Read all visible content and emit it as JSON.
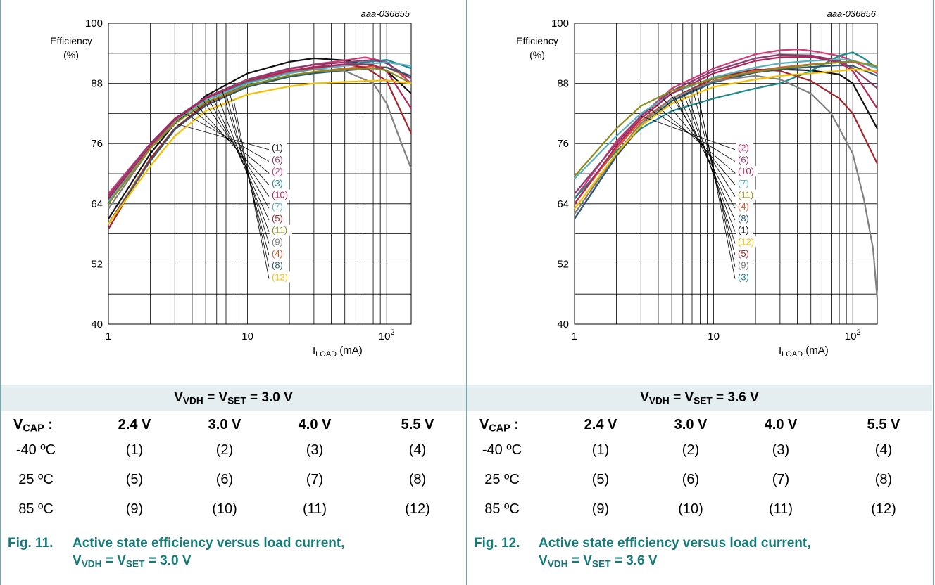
{
  "figures": [
    {
      "ref": "aaa-036855",
      "condition_label": "VVDH = VSET = 3.0 V",
      "condition_parts": {
        "v1": "V",
        "s1": "VDH",
        "mid": " = V",
        "s2": "SET",
        "val": " = 3.0 V"
      },
      "table": {
        "corner": "V",
        "corner_sub": "CAP",
        "corner_suffix": " :",
        "columns": [
          "2.4 V",
          "3.0 V",
          "4.0 V",
          "5.5 V"
        ],
        "rows": [
          {
            "temp": "-40 ºC",
            "cells": [
              "(1)",
              "(2)",
              "(3)",
              "(4)"
            ]
          },
          {
            "temp": "25 ºC",
            "cells": [
              "(5)",
              "(6)",
              "(7)",
              "(8)"
            ]
          },
          {
            "temp": "85 ºC",
            "cells": [
              "(9)",
              "(10)",
              "(11)",
              "(12)"
            ]
          }
        ]
      },
      "caption": {
        "fig": "Fig. 11.",
        "text": "Active state efficiency versus load current,",
        "line2_parts": {
          "v1": "V",
          "s1": "VDH",
          "mid": " = V",
          "s2": "SET",
          "val": " = 3.0 V"
        }
      }
    },
    {
      "ref": "aaa-036856",
      "condition_label": "VVDH = VSET = 3.6 V",
      "condition_parts": {
        "v1": "V",
        "s1": "VDH",
        "mid": " = V",
        "s2": "SET",
        "val": " = 3.6 V"
      },
      "table": {
        "corner": "V",
        "corner_sub": "CAP",
        "corner_suffix": " :",
        "columns": [
          "2.4 V",
          "3.0 V",
          "4.0 V",
          "5.5 V"
        ],
        "rows": [
          {
            "temp": "-40 ºC",
            "cells": [
              "(1)",
              "(2)",
              "(3)",
              "(4)"
            ]
          },
          {
            "temp": "25 ºC",
            "cells": [
              "(5)",
              "(6)",
              "(7)",
              "(8)"
            ]
          },
          {
            "temp": "85 ºC",
            "cells": [
              "(9)",
              "(10)",
              "(11)",
              "(12)"
            ]
          }
        ]
      },
      "caption": {
        "fig": "Fig. 12.",
        "text": "Active state efficiency versus load current,",
        "line2_parts": {
          "v1": "V",
          "s1": "VDH",
          "mid": " = V",
          "s2": "SET",
          "val": " = 3.6 V"
        }
      }
    }
  ],
  "chart_data": [
    {
      "type": "line",
      "ref": "aaa-036855",
      "ylabel": [
        "Efficiency",
        "(%)"
      ],
      "xlabel_main": "I",
      "xlabel_sub": "LOAD",
      "xlabel_unit": " (mA)",
      "x_scale": "log",
      "xlim": [
        1,
        150
      ],
      "ylim": [
        40,
        100
      ],
      "yticks": [
        "40",
        "52",
        "64",
        "76",
        "88",
        "100"
      ],
      "xticks": [
        {
          "v": 1,
          "t": "1"
        },
        {
          "v": 10,
          "t": "10"
        },
        {
          "v": 100,
          "t": "10",
          "sup": "2"
        }
      ],
      "legend_order": [
        "(1)",
        "(6)",
        "(2)",
        "(3)",
        "(10)",
        "(7)",
        "(5)",
        "(11)",
        "(9)",
        "(4)",
        "(8)",
        "(12)"
      ],
      "series": [
        {
          "name": "(1)",
          "color": "#111111",
          "x": [
            1,
            2,
            3,
            5,
            10,
            20,
            30,
            50,
            80,
            100,
            150
          ],
          "y": [
            61,
            74,
            80,
            85.5,
            90,
            92.3,
            93,
            92.6,
            91.5,
            90.5,
            86
          ]
        },
        {
          "name": "(2)",
          "color": "#d23a78",
          "x": [
            1,
            2,
            3,
            5,
            10,
            20,
            30,
            50,
            70,
            100,
            150
          ],
          "y": [
            66,
            76,
            81,
            85,
            88.5,
            90.8,
            91.8,
            92.6,
            93.2,
            92.3,
            88
          ]
        },
        {
          "name": "(3)",
          "color": "#1d8a90",
          "x": [
            1,
            2,
            3,
            5,
            10,
            20,
            30,
            50,
            80,
            100,
            150
          ],
          "y": [
            64,
            75,
            80.5,
            84.6,
            88.2,
            90.2,
            91,
            91.8,
            92.4,
            92.7,
            91
          ]
        },
        {
          "name": "(4)",
          "color": "#e0552a",
          "x": [
            1,
            2,
            3,
            5,
            10,
            20,
            30,
            50,
            80,
            100,
            150
          ],
          "y": [
            60,
            73,
            79,
            84,
            87.5,
            89.5,
            90.3,
            91,
            91.4,
            91.2,
            89
          ]
        },
        {
          "name": "(5)",
          "color": "#a4232a",
          "x": [
            1,
            2,
            3,
            5,
            10,
            20,
            30,
            50,
            70,
            100,
            150
          ],
          "y": [
            59,
            73,
            79,
            84,
            88,
            90.3,
            91,
            91.8,
            91.2,
            88.5,
            78
          ]
        },
        {
          "name": "(6)",
          "color": "#8a3a6e",
          "x": [
            1,
            2,
            3,
            5,
            10,
            20,
            30,
            50,
            80,
            100,
            150
          ],
          "y": [
            65.5,
            76,
            81,
            85.2,
            88.8,
            91,
            91.7,
            92.2,
            92.7,
            92,
            89
          ]
        },
        {
          "name": "(7)",
          "color": "#5aafc0",
          "x": [
            1,
            2,
            3,
            5,
            10,
            20,
            30,
            50,
            80,
            100,
            150
          ],
          "y": [
            64.5,
            75.5,
            80.5,
            84.6,
            88,
            90,
            90.8,
            91.5,
            92,
            92.2,
            91.5
          ]
        },
        {
          "name": "(8)",
          "color": "#2d5a70",
          "x": [
            1,
            2,
            3,
            5,
            10,
            20,
            30,
            50,
            80,
            100,
            150
          ],
          "y": [
            60,
            72.5,
            78.8,
            83.6,
            87.3,
            89.3,
            90,
            90.6,
            91,
            91.2,
            89.5
          ]
        },
        {
          "name": "(9)",
          "color": "#808080",
          "x": [
            1,
            2,
            3,
            5,
            10,
            20,
            30,
            50,
            80,
            100,
            120,
            150
          ],
          "y": [
            63,
            75,
            80.5,
            85,
            88.6,
            90.3,
            90.8,
            90.5,
            88,
            84,
            78,
            71
          ]
        },
        {
          "name": "(10)",
          "color": "#b02458",
          "x": [
            1,
            2,
            3,
            5,
            10,
            20,
            30,
            50,
            80,
            100,
            150
          ],
          "y": [
            65,
            75.5,
            80.8,
            85,
            88.5,
            90.5,
            91.3,
            91.8,
            91.7,
            90.5,
            83
          ]
        },
        {
          "name": "(11)",
          "color": "#8c8c1e",
          "x": [
            1,
            2,
            3,
            5,
            10,
            20,
            30,
            50,
            80,
            100,
            150
          ],
          "y": [
            64,
            75,
            80,
            84.2,
            87.6,
            89.6,
            90.3,
            90.8,
            91,
            90.6,
            88
          ]
        },
        {
          "name": "(12)",
          "color": "#f5bf00",
          "x": [
            1,
            2,
            3,
            5,
            10,
            20,
            30,
            50,
            80,
            100,
            150
          ],
          "y": [
            60,
            71.5,
            77.5,
            82.5,
            85.8,
            87.4,
            88,
            88.3,
            88.5,
            88.6,
            88
          ]
        }
      ]
    },
    {
      "type": "line",
      "ref": "aaa-036856",
      "ylabel": [
        "Efficiency",
        "(%)"
      ],
      "xlabel_main": "I",
      "xlabel_sub": "LOAD",
      "xlabel_unit": " (mA)",
      "x_scale": "log",
      "xlim": [
        1,
        150
      ],
      "ylim": [
        40,
        100
      ],
      "yticks": [
        "40",
        "52",
        "64",
        "76",
        "88",
        "100"
      ],
      "xticks": [
        {
          "v": 1,
          "t": "1"
        },
        {
          "v": 10,
          "t": "10"
        },
        {
          "v": 100,
          "t": "10",
          "sup": "2"
        }
      ],
      "legend_order": [
        "(2)",
        "(6)",
        "(10)",
        "(7)",
        "(11)",
        "(4)",
        "(8)",
        "(1)",
        "(12)",
        "(5)",
        "(9)",
        "(3)"
      ],
      "series": [
        {
          "name": "(1)",
          "color": "#111111",
          "x": [
            1,
            2,
            3,
            5,
            10,
            20,
            30,
            50,
            80,
            100,
            150
          ],
          "y": [
            61,
            73.5,
            79.5,
            84.5,
            88.5,
            90.2,
            90.8,
            90.6,
            89.8,
            88,
            79
          ]
        },
        {
          "name": "(2)",
          "color": "#d23a78",
          "x": [
            1,
            2,
            3,
            5,
            10,
            20,
            30,
            40,
            50,
            80,
            100,
            150
          ],
          "y": [
            65,
            76.5,
            81.5,
            87,
            91,
            93.8,
            94.6,
            94.8,
            94.5,
            93.5,
            92.5,
            90
          ]
        },
        {
          "name": "(3)",
          "color": "#1d8a90",
          "x": [
            1,
            2,
            3,
            5,
            10,
            20,
            30,
            50,
            80,
            100,
            120,
            150
          ],
          "y": [
            65,
            74.5,
            79,
            82.5,
            85,
            87,
            88,
            90.5,
            93.5,
            94.2,
            93,
            91
          ]
        },
        {
          "name": "(4)",
          "color": "#e0552a",
          "x": [
            1,
            2,
            3,
            5,
            10,
            20,
            30,
            50,
            80,
            100,
            150
          ],
          "y": [
            64,
            75,
            80.5,
            85,
            88.5,
            90.5,
            91.2,
            91.8,
            92.2,
            92.3,
            91.5
          ]
        },
        {
          "name": "(5)",
          "color": "#a4232a",
          "x": [
            1,
            2,
            3,
            5,
            10,
            20,
            30,
            50,
            80,
            100,
            150
          ],
          "y": [
            62,
            74,
            80,
            85,
            89,
            90.8,
            90.5,
            88.5,
            85,
            82,
            72
          ]
        },
        {
          "name": "(6)",
          "color": "#8a3a6e",
          "x": [
            1,
            2,
            3,
            5,
            10,
            20,
            30,
            50,
            80,
            100,
            150
          ],
          "y": [
            66,
            76,
            81.5,
            86.5,
            90.5,
            93,
            93.7,
            93.6,
            92.5,
            91,
            87
          ]
        },
        {
          "name": "(7)",
          "color": "#5aafc0",
          "x": [
            1,
            2,
            3,
            5,
            10,
            20,
            30,
            50,
            80,
            100,
            150
          ],
          "y": [
            69,
            77.5,
            82,
            86,
            89.2,
            91.2,
            92,
            92.5,
            92.8,
            92.6,
            91
          ]
        },
        {
          "name": "(8)",
          "color": "#2d5a70",
          "x": [
            1,
            2,
            3,
            5,
            10,
            20,
            30,
            50,
            80,
            100,
            150
          ],
          "y": [
            61,
            73.5,
            79.5,
            84.5,
            88.2,
            90.2,
            90.8,
            91.3,
            91.6,
            91.5,
            89.5
          ]
        },
        {
          "name": "(9)",
          "color": "#808080",
          "x": [
            1,
            2,
            3,
            5,
            10,
            20,
            30,
            50,
            70,
            100,
            120,
            140,
            150
          ],
          "y": [
            62,
            74,
            80,
            85,
            88.5,
            89.5,
            88.8,
            86,
            82,
            74,
            65,
            55,
            45
          ]
        },
        {
          "name": "(10)",
          "color": "#b02458",
          "x": [
            1,
            2,
            3,
            5,
            10,
            20,
            30,
            50,
            80,
            100,
            150
          ],
          "y": [
            64,
            75.5,
            81,
            86,
            90,
            92.5,
            93.2,
            93.3,
            92.2,
            90.5,
            83
          ]
        },
        {
          "name": "(11)",
          "color": "#8c8c1e",
          "x": [
            1,
            2,
            3,
            5,
            10,
            20,
            30,
            50,
            80,
            100,
            150
          ],
          "y": [
            69.5,
            79,
            83.5,
            86.5,
            89,
            90.3,
            91,
            91.7,
            92.2,
            92.4,
            91.5
          ]
        },
        {
          "name": "(12)",
          "color": "#f5bf00",
          "x": [
            1,
            2,
            3,
            5,
            10,
            20,
            30,
            50,
            80,
            100,
            150
          ],
          "y": [
            63,
            74,
            79.5,
            84,
            87.3,
            88.8,
            89.5,
            90,
            90.5,
            90.8,
            90.5
          ]
        }
      ]
    }
  ]
}
